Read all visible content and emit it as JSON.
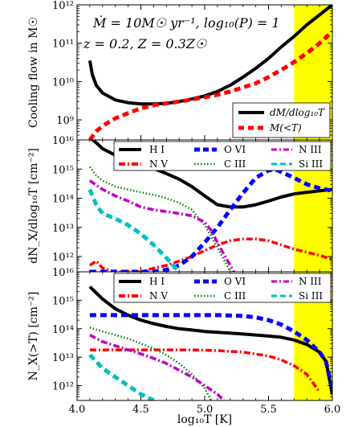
{
  "annotation": {
    "line1": "Ṁ = 10M☉ yr⁻¹, log₁₀(P) = 1",
    "line2": "z = 0.2, Z = 0.3Z☉"
  },
  "x_axis": {
    "label": "log₁₀T [K]",
    "ticks": [
      "4.0",
      "4.5",
      "5.0",
      "5.5",
      "6.0"
    ]
  },
  "chart_data": [
    {
      "type": "line",
      "panel": "top",
      "ylabel": "Cooling flow in M☉",
      "y_scale": "log",
      "xlim": [
        4.0,
        6.0
      ],
      "ylim": [
        300000000.0,
        1000000000000.0
      ],
      "y_tick_labels": [
        "10⁹",
        "10¹⁰",
        "10¹¹",
        "10¹²"
      ],
      "highlight_band": {
        "x": [
          5.7,
          6.0
        ],
        "color": "#ffff00"
      },
      "legend": {
        "placement": "lower-right"
      },
      "series": [
        {
          "name": "dM/dlog₁₀T",
          "color": "#000000",
          "style": "solid",
          "x": [
            4.1,
            4.12,
            4.15,
            4.2,
            4.3,
            4.4,
            4.5,
            4.6,
            4.7,
            4.8,
            4.9,
            5.0,
            5.1,
            5.2,
            5.3,
            5.4,
            5.5,
            5.6,
            5.7,
            5.8,
            5.9,
            6.0
          ],
          "y": [
            35000000000.0,
            15000000000.0,
            8000000000.0,
            5000000000.0,
            3300000000.0,
            2800000000.0,
            2600000000.0,
            2600000000.0,
            2700000000.0,
            3000000000.0,
            3500000000.0,
            4200000000.0,
            5500000000.0,
            8000000000.0,
            13000000000.0,
            22000000000.0,
            40000000000.0,
            80000000000.0,
            150000000000.0,
            300000000000.0,
            550000000000.0,
            1000000000000.0
          ]
        },
        {
          "name": "M(<T)",
          "color": "#ff0000",
          "style": "dashed",
          "x": [
            4.1,
            4.15,
            4.2,
            4.3,
            4.4,
            4.5,
            4.6,
            4.7,
            4.8,
            4.9,
            5.0,
            5.1,
            5.2,
            5.3,
            5.4,
            5.5,
            5.6,
            5.7,
            5.8,
            5.9,
            6.0
          ],
          "y": [
            300000000.0,
            500000000.0,
            700000000.0,
            1100000000.0,
            1500000000.0,
            2000000000.0,
            2400000000.0,
            2700000000.0,
            3000000000.0,
            3400000000.0,
            3900000000.0,
            4500000000.0,
            5500000000.0,
            7000000000.0,
            9000000000.0,
            13000000000.0,
            20000000000.0,
            32000000000.0,
            55000000000.0,
            100000000000.0,
            200000000000.0
          ]
        }
      ]
    },
    {
      "type": "line",
      "panel": "middle",
      "ylabel": "dN_X/dlog₁₀T [cm⁻²]",
      "y_scale": "log",
      "xlim": [
        4.0,
        6.0
      ],
      "ylim": [
        300000000000.0,
        1e+16
      ],
      "y_tick_labels": [
        "10¹²",
        "10¹³",
        "10¹⁴",
        "10¹⁵",
        "10¹⁶"
      ],
      "highlight_band": {
        "x": [
          5.7,
          6.0
        ],
        "color": "#ffff00"
      },
      "legend": {
        "placement": "top",
        "columns": 3
      },
      "series": [
        {
          "name": "H I",
          "color": "#000000",
          "style": "solid",
          "x": [
            4.1,
            4.15,
            4.2,
            4.3,
            4.4,
            4.5,
            4.6,
            4.7,
            4.8,
            4.9,
            5.0,
            5.1,
            5.2,
            5.3,
            5.4,
            5.5,
            5.6,
            5.7,
            5.8,
            5.9,
            6.0
          ],
          "y": [
            1.2e+16,
            8000000000000000.0,
            5000000000000000.0,
            3000000000000000.0,
            2000000000000000.0,
            1500000000000000.0,
            1050000000000000.0,
            700000000000000.0,
            450000000000000.0,
            250000000000000.0,
            120000000000000.0,
            60000000000000.0,
            50000000000000.0,
            50000000000000.0,
            60000000000000.0,
            80000000000000.0,
            110000000000000.0,
            140000000000000.0,
            160000000000000.0,
            180000000000000.0,
            200000000000000.0
          ]
        },
        {
          "name": "N V",
          "color": "#ff0000",
          "style": "dashdot",
          "x": [
            4.1,
            4.15,
            4.2,
            4.3,
            4.4,
            4.5,
            4.6,
            4.7,
            4.8,
            4.9,
            5.0,
            5.1,
            5.2,
            5.3,
            5.4,
            5.5,
            5.6,
            5.7,
            5.8,
            5.9,
            6.0
          ],
          "y": [
            500000000000.0,
            700000000000.0,
            400000000000.0,
            300000000000.0,
            300000000000.0,
            300000000000.0,
            400000000000.0,
            500000000000.0,
            700000000000.0,
            1000000000000.0,
            1600000000000.0,
            2500000000000.0,
            3500000000000.0,
            4000000000000.0,
            4000000000000.0,
            3500000000000.0,
            2500000000000.0,
            1800000000000.0,
            1400000000000.0,
            1100000000000.0,
            800000000000.0
          ]
        },
        {
          "name": "O VI",
          "color": "#0000ff",
          "style": "dashed",
          "x": [
            4.1,
            4.2,
            4.3,
            4.4,
            4.5,
            4.6,
            4.7,
            4.8,
            4.9,
            5.0,
            5.1,
            5.2,
            5.3,
            5.4,
            5.5,
            5.55,
            5.6,
            5.7,
            5.8,
            5.9,
            6.0
          ],
          "y": [
            300000000000.0,
            300000000000.0,
            300000000000.0,
            300000000000.0,
            300000000000.0,
            300000000000.0,
            350000000000.0,
            500000000000.0,
            1000000000000.0,
            3000000000000.0,
            10000000000000.0,
            40000000000000.0,
            150000000000000.0,
            500000000000000.0,
            900000000000000.0,
            1000000000000000.0,
            800000000000000.0,
            500000000000000.0,
            300000000000000.0,
            220000000000000.0,
            180000000000000.0
          ]
        },
        {
          "name": "C III",
          "color": "#008000",
          "style": "dotted",
          "x": [
            4.1,
            4.15,
            4.2,
            4.3,
            4.4,
            4.5,
            4.6,
            4.7,
            4.8,
            4.9,
            5.0,
            5.05,
            5.1,
            5.15,
            5.2
          ],
          "y": [
            1200000000000000.0,
            600000000000000.0,
            400000000000000.0,
            250000000000000.0,
            200000000000000.0,
            160000000000000.0,
            130000000000000.0,
            100000000000000.0,
            70000000000000.0,
            40000000000000.0,
            12000000000000.0,
            5000000000000.0,
            2000000000000.0,
            800000000000.0,
            300000000000.0
          ]
        },
        {
          "name": "N III",
          "color": "#bf00bf",
          "style": "dashdot",
          "x": [
            4.1,
            4.2,
            4.3,
            4.4,
            4.5,
            4.6,
            4.7,
            4.8,
            4.9,
            5.0,
            5.05,
            5.1,
            5.15,
            5.2,
            5.25
          ],
          "y": [
            400000000000000.0,
            200000000000000.0,
            120000000000000.0,
            80000000000000.0,
            50000000000000.0,
            40000000000000.0,
            35000000000000.0,
            30000000000000.0,
            25000000000000.0,
            15000000000000.0,
            8000000000000.0,
            3000000000000.0,
            1200000000000.0,
            500000000000.0,
            200000000000.0
          ]
        },
        {
          "name": "Si III",
          "color": "#00bfbf",
          "style": "dashed",
          "x": [
            4.1,
            4.15,
            4.2,
            4.3,
            4.4,
            4.5,
            4.6,
            4.7,
            4.8
          ],
          "y": [
            200000000000000.0,
            60000000000000.0,
            30000000000000.0,
            20000000000000.0,
            12000000000000.0,
            6000000000000.0,
            2500000000000.0,
            900000000000.0,
            300000000000.0
          ]
        }
      ]
    },
    {
      "type": "line",
      "panel": "bottom",
      "ylabel": "N_X(>T) [cm⁻²]",
      "y_scale": "log",
      "xlim": [
        4.0,
        6.0
      ],
      "ylim": [
        300000000000.0,
        1e+16
      ],
      "y_tick_labels": [
        "10¹²",
        "10¹³",
        "10¹⁴",
        "10¹⁵",
        "10¹⁶"
      ],
      "highlight_band": {
        "x": [
          5.7,
          6.0
        ],
        "color": "#ffff00"
      },
      "legend": {
        "placement": "top",
        "columns": 3
      },
      "series": [
        {
          "name": "H I",
          "color": "#000000",
          "style": "solid",
          "x": [
            4.1,
            4.15,
            4.2,
            4.3,
            4.4,
            4.5,
            4.6,
            4.7,
            4.8,
            4.9,
            5.0,
            5.1,
            5.2,
            5.3,
            5.4,
            5.5,
            5.6,
            5.7,
            5.8,
            5.9,
            5.95,
            6.0
          ],
          "y": [
            3000000000000000.0,
            1800000000000000.0,
            1100000000000000.0,
            500000000000000.0,
            300000000000000.0,
            200000000000000.0,
            150000000000000.0,
            120000000000000.0,
            100000000000000.0,
            90000000000000.0,
            80000000000000.0,
            75000000000000.0,
            70000000000000.0,
            65000000000000.0,
            60000000000000.0,
            55000000000000.0,
            50000000000000.0,
            40000000000000.0,
            28000000000000.0,
            15000000000000.0,
            7000000000000.0,
            500000000000.0
          ]
        },
        {
          "name": "N V",
          "color": "#ff0000",
          "style": "dashdot",
          "x": [
            4.1,
            4.3,
            4.5,
            4.7,
            4.9,
            5.1,
            5.3,
            5.5,
            5.6,
            5.7,
            5.8,
            5.9
          ],
          "y": [
            18000000000000.0,
            18000000000000.0,
            18000000000000.0,
            18000000000000.0,
            18000000000000.0,
            17000000000000.0,
            15000000000000.0,
            11000000000000.0,
            8000000000000.0,
            5000000000000.0,
            2500000000000.0,
            600000000000.0
          ]
        },
        {
          "name": "O VI",
          "color": "#0000ff",
          "style": "dashed",
          "x": [
            4.1,
            4.3,
            4.5,
            4.7,
            4.9,
            5.1,
            5.2,
            5.3,
            5.4,
            5.5,
            5.6,
            5.7,
            5.8,
            5.9,
            5.95,
            6.0
          ],
          "y": [
            300000000000000.0,
            300000000000000.0,
            300000000000000.0,
            300000000000000.0,
            300000000000000.0,
            300000000000000.0,
            290000000000000.0,
            280000000000000.0,
            250000000000000.0,
            200000000000000.0,
            140000000000000.0,
            80000000000000.0,
            40000000000000.0,
            15000000000000.0,
            7000000000000.0,
            700000000000.0
          ]
        },
        {
          "name": "C III",
          "color": "#008000",
          "style": "dotted",
          "x": [
            4.1,
            4.2,
            4.3,
            4.4,
            4.5,
            4.6,
            4.7,
            4.8,
            4.9,
            5.0,
            5.05
          ],
          "y": [
            110000000000000.0,
            80000000000000.0,
            60000000000000.0,
            45000000000000.0,
            30000000000000.0,
            20000000000000.0,
            12000000000000.0,
            6000000000000.0,
            2500000000000.0,
            800000000000.0,
            300000000000.0
          ]
        },
        {
          "name": "N III",
          "color": "#bf00bf",
          "style": "dashdot",
          "x": [
            4.1,
            4.2,
            4.3,
            4.4,
            4.5,
            4.6,
            4.7,
            4.8,
            4.9,
            5.0,
            5.1,
            5.15
          ],
          "y": [
            60000000000000.0,
            35000000000000.0,
            25000000000000.0,
            18000000000000.0,
            13000000000000.0,
            9000000000000.0,
            6000000000000.0,
            3500000000000.0,
            2000000000000.0,
            1000000000000.0,
            500000000000.0,
            300000000000.0
          ]
        },
        {
          "name": "Si III",
          "color": "#00bfbf",
          "style": "dashed",
          "x": [
            4.1,
            4.15,
            4.2,
            4.3,
            4.4,
            4.5,
            4.6
          ],
          "y": [
            12000000000000.0,
            7000000000000.0,
            4000000000000.0,
            2000000000000.0,
            1000000000000.0,
            500000000000.0,
            300000000000.0
          ]
        }
      ]
    }
  ]
}
